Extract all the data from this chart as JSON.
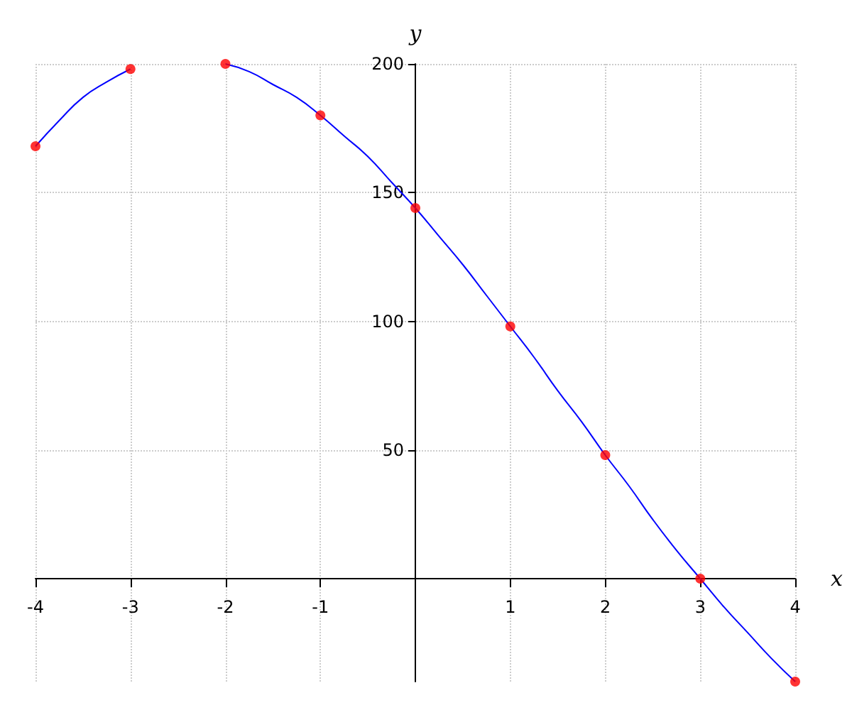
{
  "chart_data": {
    "type": "line",
    "xlabel": "x",
    "ylabel": "y",
    "xlim": [
      -4,
      4
    ],
    "ylim": [
      -40,
      200
    ],
    "xticks": [
      -4,
      -3,
      -2,
      -1,
      1,
      2,
      3,
      4
    ],
    "yticks": [
      {
        "value": 0,
        "label": null
      },
      50,
      100,
      150,
      200
    ],
    "grid": true,
    "series": [
      {
        "color": "#0000ff",
        "marker": "none",
        "line_style": "solid",
        "x": [
          -4,
          -3.75,
          -3.5,
          -3.25,
          -3,
          -2.75,
          -2.5,
          -2.25,
          -2,
          -1.75,
          -1.5,
          -1.25,
          -1,
          -0.75,
          -0.5,
          -0.25,
          0,
          0.25,
          0.5,
          0.75,
          1,
          1.25,
          1.5,
          1.75,
          2,
          2.25,
          2.5,
          2.75,
          3,
          3.25,
          3.5,
          3.75,
          4
        ],
        "values": [
          168,
          178,
          187,
          193,
          198,
          null,
          null,
          null,
          200,
          197,
          192,
          187,
          180,
          172,
          164,
          154,
          144,
          133,
          122,
          110,
          98,
          86,
          73,
          61,
          48,
          36,
          23,
          11,
          0,
          -11,
          -21,
          -31,
          -40
        ]
      },
      {
        "type": "scatter",
        "color": "#ff0000",
        "marker": "circle",
        "x": [
          -4,
          -3,
          -2,
          -1,
          0,
          1,
          2,
          3,
          4
        ],
        "values": [
          168,
          198,
          200,
          180,
          144,
          98,
          48,
          0,
          -40
        ]
      }
    ]
  }
}
